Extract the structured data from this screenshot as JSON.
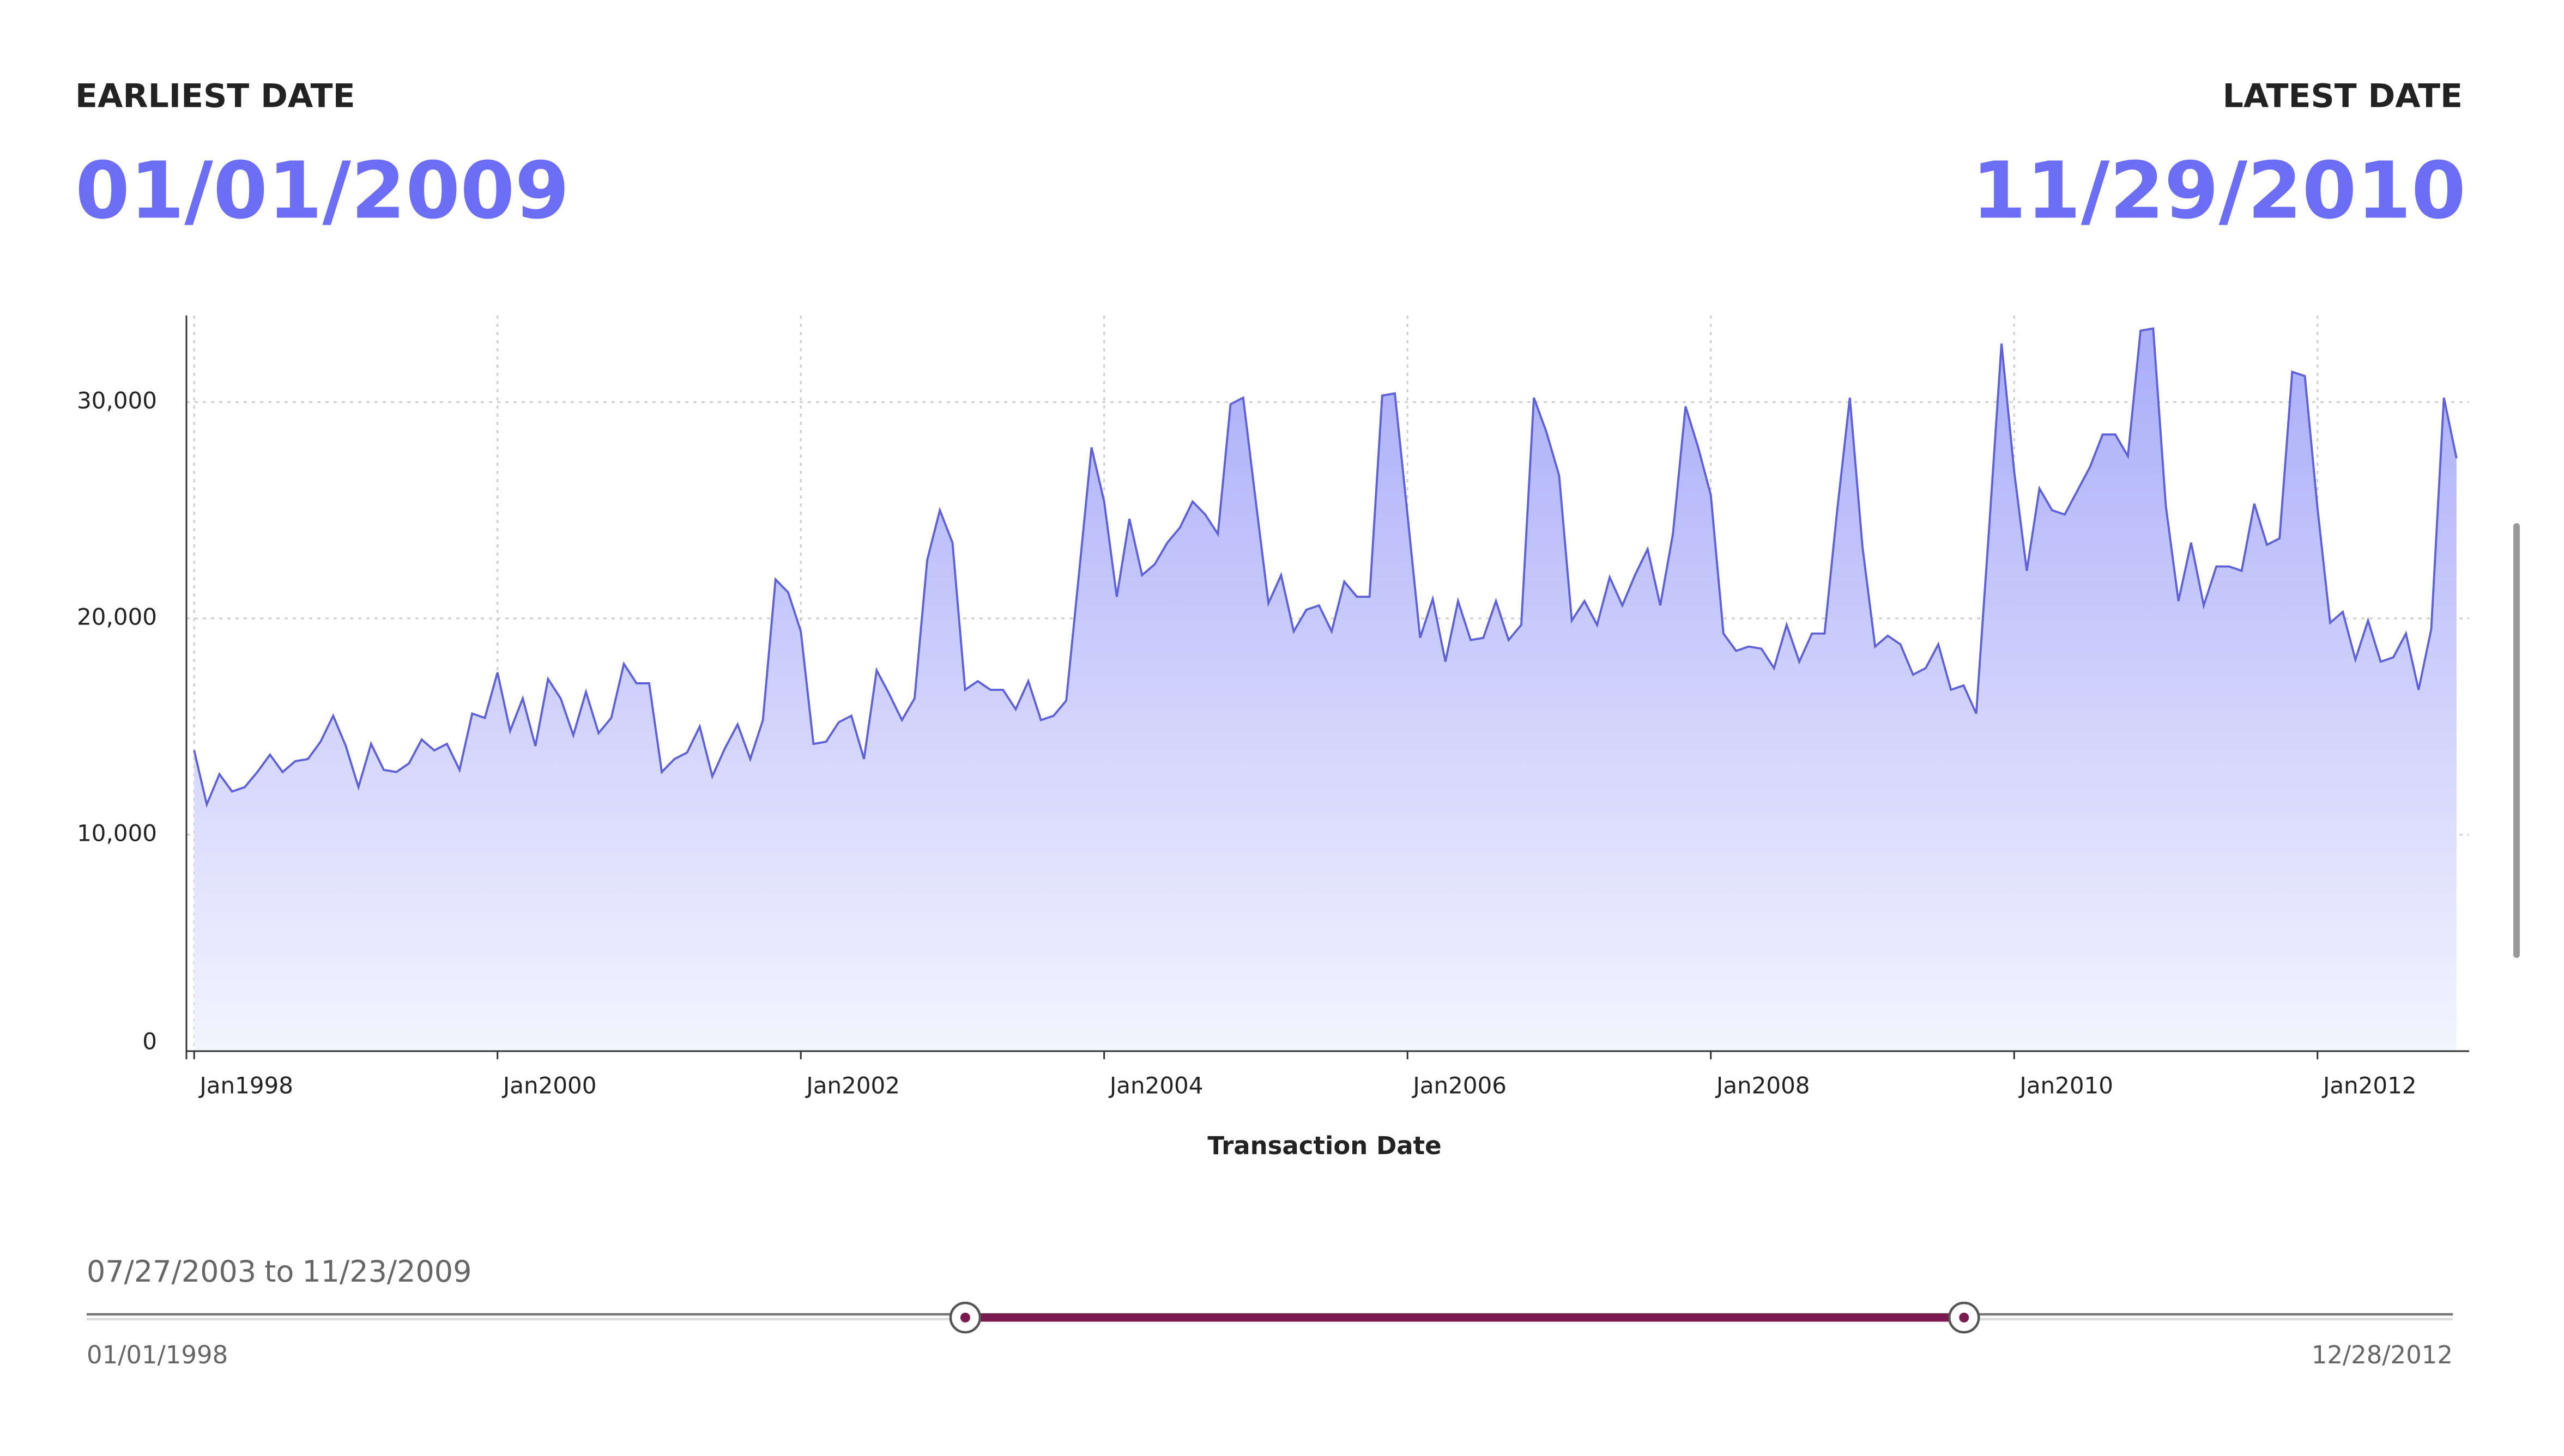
{
  "header": {
    "earliest_label": "EARLIEST DATE",
    "earliest_date": "01/01/2009",
    "latest_label": "LATEST DATE",
    "latest_date": "11/29/2010"
  },
  "chart_data": {
    "type": "area",
    "xlabel": "Transaction Date",
    "color": "#5f61d6",
    "fill_top": "#a9adf8",
    "fill_bottom": "#f4f4ff",
    "grid": true,
    "xlim": [
      "1997-12",
      "2013-01"
    ],
    "xticks": [
      {
        "value": "1998-01",
        "label": "Jan1998"
      },
      {
        "value": "2000-01",
        "label": "Jan2000"
      },
      {
        "value": "2002-01",
        "label": "Jan2002"
      },
      {
        "value": "2004-01",
        "label": "Jan2004"
      },
      {
        "value": "2006-01",
        "label": "Jan2006"
      },
      {
        "value": "2008-01",
        "label": "Jan2008"
      },
      {
        "value": "2010-01",
        "label": "Jan2010"
      },
      {
        "value": "2012-01",
        "label": "Jan2012"
      }
    ],
    "ylim": [
      0,
      34000
    ],
    "yticks": [
      0,
      {
        "value": 10000,
        "label": "10,000"
      },
      {
        "value": 20000,
        "label": "20,000"
      },
      {
        "value": 30000,
        "label": "30,000"
      }
    ],
    "x": [
      "1998-01",
      "1998-02",
      "1998-03",
      "1998-04",
      "1998-05",
      "1998-06",
      "1998-07",
      "1998-08",
      "1998-09",
      "1998-10",
      "1998-11",
      "1998-12",
      "1999-01",
      "1999-02",
      "1999-03",
      "1999-04",
      "1999-05",
      "1999-06",
      "1999-07",
      "1999-08",
      "1999-09",
      "1999-10",
      "1999-11",
      "1999-12",
      "2000-01",
      "2000-02",
      "2000-03",
      "2000-04",
      "2000-05",
      "2000-06",
      "2000-07",
      "2000-08",
      "2000-09",
      "2000-10",
      "2000-11",
      "2000-12",
      "2001-01",
      "2001-02",
      "2001-03",
      "2001-04",
      "2001-05",
      "2001-06",
      "2001-07",
      "2001-08",
      "2001-09",
      "2001-10",
      "2001-11",
      "2001-12",
      "2002-01",
      "2002-02",
      "2002-03",
      "2002-04",
      "2002-05",
      "2002-06",
      "2002-07",
      "2002-08",
      "2002-09",
      "2002-10",
      "2002-11",
      "2002-12",
      "2003-01",
      "2003-02",
      "2003-03",
      "2003-04",
      "2003-05",
      "2003-06",
      "2003-07",
      "2003-08",
      "2003-09",
      "2003-10",
      "2003-11",
      "2003-12",
      "2004-01",
      "2004-02",
      "2004-03",
      "2004-04",
      "2004-05",
      "2004-06",
      "2004-07",
      "2004-08",
      "2004-09",
      "2004-10",
      "2004-11",
      "2004-12",
      "2005-01",
      "2005-02",
      "2005-03",
      "2005-04",
      "2005-05",
      "2005-06",
      "2005-07",
      "2005-08",
      "2005-09",
      "2005-10",
      "2005-11",
      "2005-12",
      "2006-01",
      "2006-02",
      "2006-03",
      "2006-04",
      "2006-05",
      "2006-06",
      "2006-07",
      "2006-08",
      "2006-09",
      "2006-10",
      "2006-11",
      "2006-12",
      "2007-01",
      "2007-02",
      "2007-03",
      "2007-04",
      "2007-05",
      "2007-06",
      "2007-07",
      "2007-08",
      "2007-09",
      "2007-10",
      "2007-11",
      "2007-12",
      "2008-01",
      "2008-02",
      "2008-03",
      "2008-04",
      "2008-05",
      "2008-06",
      "2008-07",
      "2008-08",
      "2008-09",
      "2008-10",
      "2008-11",
      "2008-12",
      "2009-01",
      "2009-02",
      "2009-03",
      "2009-04",
      "2009-05",
      "2009-06",
      "2009-07",
      "2009-08",
      "2009-09",
      "2009-10",
      "2009-11",
      "2009-12",
      "2010-01",
      "2010-02",
      "2010-03",
      "2010-04",
      "2010-05",
      "2010-06",
      "2010-07",
      "2010-08",
      "2010-09",
      "2010-10",
      "2010-11",
      "2010-12",
      "2011-01",
      "2011-02",
      "2011-03",
      "2011-04",
      "2011-05",
      "2011-06",
      "2011-07",
      "2011-08",
      "2011-09",
      "2011-10",
      "2011-11",
      "2011-12",
      "2012-01",
      "2012-02",
      "2012-03",
      "2012-04",
      "2012-05",
      "2012-06",
      "2012-07",
      "2012-08",
      "2012-09",
      "2012-10",
      "2012-11",
      "2012-12"
    ],
    "values": [
      13900,
      11400,
      12800,
      12000,
      12200,
      12900,
      13700,
      12900,
      13400,
      13500,
      14300,
      15500,
      14100,
      12200,
      14200,
      13000,
      12900,
      13300,
      14400,
      13900,
      14200,
      13000,
      15600,
      15400,
      17500,
      14800,
      16300,
      14100,
      17200,
      16300,
      14600,
      16600,
      14700,
      15400,
      17900,
      17000,
      17000,
      12900,
      13500,
      13800,
      15000,
      12700,
      14000,
      15100,
      13500,
      15300,
      21800,
      21200,
      19400,
      14200,
      14300,
      15200,
      15500,
      13500,
      17600,
      16500,
      15300,
      16300,
      22700,
      25000,
      23500,
      16700,
      17100,
      16700,
      16700,
      15800,
      17100,
      15300,
      15500,
      16200,
      22000,
      27900,
      25400,
      21000,
      24600,
      22000,
      22500,
      23500,
      24200,
      25400,
      24800,
      23900,
      29900,
      30200,
      25400,
      20700,
      22000,
      19400,
      20400,
      20600,
      19400,
      21700,
      21000,
      21000,
      30300,
      30400,
      24800,
      19100,
      20900,
      18000,
      20800,
      19000,
      19100,
      20800,
      19000,
      19700,
      30200,
      28600,
      26600,
      19900,
      20800,
      19700,
      21900,
      20600,
      22000,
      23200,
      20600,
      23900,
      29800,
      27900,
      25700,
      19300,
      18500,
      18700,
      18600,
      17700,
      19700,
      18000,
      19300,
      19300,
      25000,
      30200,
      23300,
      18700,
      19200,
      18800,
      17400,
      17700,
      18800,
      16700,
      16900,
      15600,
      24000,
      32700,
      26800,
      22200,
      26000,
      25000,
      24800,
      25900,
      27000,
      28500,
      28500,
      27500,
      33300,
      33400,
      25200,
      20800,
      23500,
      20600,
      22400,
      22400,
      22200,
      25300,
      23400,
      23700,
      31400,
      31200,
      25100,
      19800,
      20300,
      18100,
      19900,
      18000,
      18200,
      19300,
      16700,
      19500,
      30200,
      27400
    ]
  },
  "slider": {
    "start": "07/27/2003",
    "connector": "to",
    "end": "11/23/2009",
    "min": "01/01/1998",
    "max": "12/28/2012",
    "color": "#7a1a4f"
  }
}
